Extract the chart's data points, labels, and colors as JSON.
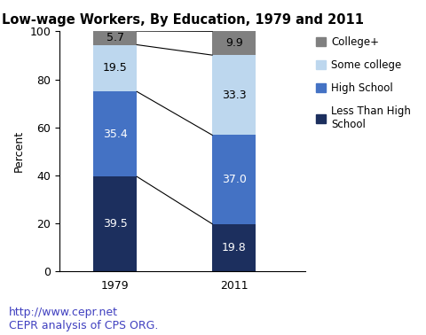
{
  "title": "Low-wage Workers, By Education, 1979 and 2011",
  "years": [
    "1979",
    "2011"
  ],
  "categories": [
    "Less Than High School",
    "High School",
    "Some college",
    "College+"
  ],
  "values": {
    "1979": [
      39.5,
      35.4,
      19.5,
      5.7
    ],
    "2011": [
      19.8,
      37.0,
      33.3,
      9.9
    ]
  },
  "colors": [
    "#1c2f5e",
    "#4472c4",
    "#bdd7ee",
    "#808080"
  ],
  "ylabel": "Percent",
  "ylim": [
    0,
    100
  ],
  "yticks": [
    0,
    20,
    40,
    60,
    80,
    100
  ],
  "footnote_line1": "http://www.cepr.net",
  "footnote_line2": "CEPR analysis of CPS ORG.",
  "bar_width": 0.55,
  "x_positions": [
    1.0,
    2.5
  ],
  "xlim": [
    0.3,
    3.4
  ],
  "title_fontsize": 10.5,
  "label_fontsize": 9,
  "tick_fontsize": 9,
  "footnote_fontsize": 9,
  "footnote_color": "#4040c0",
  "legend_labels": [
    "College+",
    "Some college",
    "High School",
    "Less Than High\nSchool"
  ],
  "text_color_dark": "white",
  "text_color_light": "black"
}
